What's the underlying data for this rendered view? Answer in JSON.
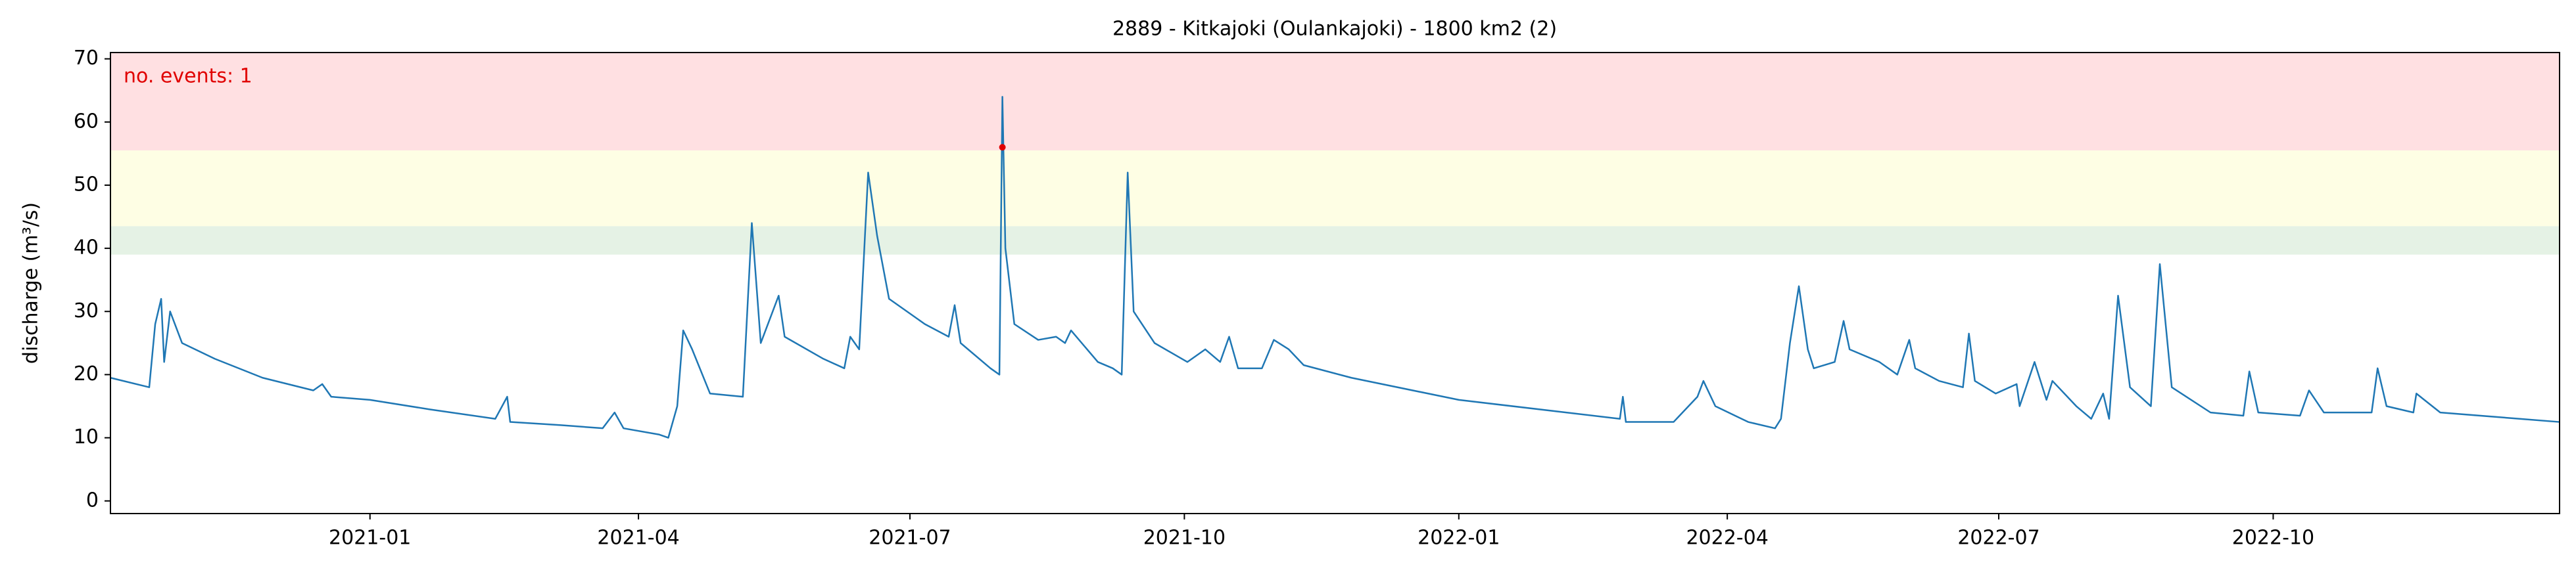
{
  "chart_data": {
    "type": "line",
    "title": "2889 - Kitkajoki (Oulankajoki) - 1800 km2 (2)",
    "y_label": "discharge (m³/s)",
    "annotation": "no. events: 1",
    "xlim": [
      "2020-10-06",
      "2023-01-05"
    ],
    "ylim": [
      -2,
      71
    ],
    "yticks": [
      0,
      10,
      20,
      30,
      40,
      50,
      60,
      70
    ],
    "xticks": [
      {
        "value": "2021-01-01",
        "label": "2021-01"
      },
      {
        "value": "2021-04-01",
        "label": "2021-04"
      },
      {
        "value": "2021-07-01",
        "label": "2021-07"
      },
      {
        "value": "2021-10-01",
        "label": "2021-10"
      },
      {
        "value": "2022-01-01",
        "label": "2022-01"
      },
      {
        "value": "2022-04-01",
        "label": "2022-04"
      },
      {
        "value": "2022-07-01",
        "label": "2022-07"
      },
      {
        "value": "2022-10-01",
        "label": "2022-10"
      }
    ],
    "bands": [
      {
        "from": 55.5,
        "to": 71,
        "color": "#ffe0e2"
      },
      {
        "from": 43.5,
        "to": 55.5,
        "color": "#fefee4"
      },
      {
        "from": 39,
        "to": 43.5,
        "color": "#e5f2e5"
      }
    ],
    "events": {
      "color": "#e00000",
      "x": [
        "2021-08-01"
      ],
      "values": [
        56
      ]
    },
    "series": [
      {
        "color": "#1f77b4",
        "x": [
          "2020-10-06",
          "2020-10-19",
          "2020-10-21",
          "2020-10-23",
          "2020-10-24",
          "2020-10-26",
          "2020-10-30",
          "2020-11-10",
          "2020-11-26",
          "2020-12-13",
          "2020-12-16",
          "2020-12-19",
          "2021-01-01",
          "2021-01-21",
          "2021-02-12",
          "2021-02-16",
          "2021-02-17",
          "2021-03-06",
          "2021-03-20",
          "2021-03-24",
          "2021-03-27",
          "2021-04-08",
          "2021-04-11",
          "2021-04-14",
          "2021-04-16",
          "2021-04-19",
          "2021-04-25",
          "2021-05-06",
          "2021-05-09",
          "2021-05-12",
          "2021-05-18",
          "2021-05-20",
          "2021-06-02",
          "2021-06-09",
          "2021-06-11",
          "2021-06-14",
          "2021-06-17",
          "2021-06-20",
          "2021-06-24",
          "2021-07-06",
          "2021-07-14",
          "2021-07-16",
          "2021-07-18",
          "2021-07-28",
          "2021-07-31",
          "2021-08-01",
          "2021-08-02",
          "2021-08-05",
          "2021-08-13",
          "2021-08-19",
          "2021-08-22",
          "2021-08-24",
          "2021-09-02",
          "2021-09-07",
          "2021-09-10",
          "2021-09-12",
          "2021-09-14",
          "2021-09-21",
          "2021-10-02",
          "2021-10-08",
          "2021-10-13",
          "2021-10-16",
          "2021-10-19",
          "2021-10-27",
          "2021-10-31",
          "2021-11-05",
          "2021-11-10",
          "2021-11-26",
          "2022-01-01",
          "2022-02-06",
          "2022-02-24",
          "2022-02-25",
          "2022-02-26",
          "2022-03-14",
          "2022-03-17",
          "2022-03-22",
          "2022-03-24",
          "2022-03-28",
          "2022-04-08",
          "2022-04-17",
          "2022-04-19",
          "2022-04-22",
          "2022-04-25",
          "2022-04-28",
          "2022-04-30",
          "2022-05-07",
          "2022-05-10",
          "2022-05-12",
          "2022-05-22",
          "2022-05-28",
          "2022-06-01",
          "2022-06-03",
          "2022-06-11",
          "2022-06-19",
          "2022-06-21",
          "2022-06-23",
          "2022-06-30",
          "2022-07-07",
          "2022-07-08",
          "2022-07-13",
          "2022-07-17",
          "2022-07-19",
          "2022-07-27",
          "2022-08-01",
          "2022-08-05",
          "2022-08-07",
          "2022-08-10",
          "2022-08-14",
          "2022-08-21",
          "2022-08-24",
          "2022-08-28",
          "2022-09-10",
          "2022-09-21",
          "2022-09-23",
          "2022-09-26",
          "2022-10-10",
          "2022-10-13",
          "2022-10-18",
          "2022-11-03",
          "2022-11-05",
          "2022-11-08",
          "2022-11-17",
          "2022-11-18",
          "2022-11-26",
          "2023-01-05"
        ],
        "values": [
          19.5,
          18,
          28,
          32,
          22,
          30,
          25,
          22.5,
          19.5,
          17.5,
          18.5,
          16.5,
          16,
          14.5,
          13,
          16.5,
          12.5,
          12,
          11.5,
          14,
          11.5,
          10.5,
          10,
          15,
          27,
          24,
          17,
          16.5,
          44,
          25,
          32.5,
          26,
          22.5,
          21,
          26,
          24,
          52,
          42,
          32,
          28,
          26,
          31,
          25,
          21,
          20,
          64,
          40,
          28,
          25.5,
          26,
          25,
          27,
          22,
          21,
          20,
          52,
          30,
          25,
          22,
          24,
          22,
          26,
          21,
          21,
          25.5,
          24,
          21.5,
          19.5,
          16,
          14,
          13,
          16.5,
          12.5,
          12.5,
          14,
          16.5,
          19,
          15,
          12.5,
          11.5,
          13,
          25,
          34,
          24,
          21,
          22,
          28.5,
          24,
          22,
          20,
          25.5,
          21,
          19,
          18,
          26.5,
          19,
          17,
          18.5,
          15,
          22,
          16,
          19,
          15,
          13,
          17,
          13,
          32.5,
          18,
          15,
          37.5,
          18,
          14,
          13.5,
          20.5,
          14,
          13.5,
          17.5,
          14,
          14,
          21,
          15,
          14,
          17,
          14,
          12.5
        ]
      }
    ]
  }
}
